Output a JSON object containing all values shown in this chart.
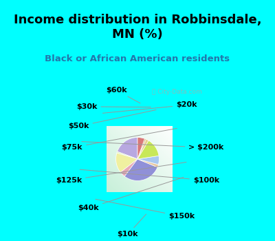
{
  "title": "Income distribution in Robbinsdale,\nMN (%)",
  "subtitle": "Black or African American residents",
  "watermark": "ⓘ City-Data.com",
  "bg_cyan": "#00FFFF",
  "bg_chart_colors": [
    "#ffffff",
    "#c8eed8"
  ],
  "labels": [
    "$20k",
    "> $200k",
    "$100k",
    "$150k",
    "$10k",
    "$40k",
    "$125k",
    "$75k",
    "$50k",
    "$30k",
    "$60k"
  ],
  "sizes": [
    18,
    1,
    14,
    4,
    27,
    2,
    6,
    13,
    2,
    1,
    5
  ],
  "colors": [
    "#b8a8e0",
    "#d8f0c0",
    "#f0f0a0",
    "#e8a8b8",
    "#9090d8",
    "#e8c8a0",
    "#a8c8f0",
    "#c8e858",
    "#e8d090",
    "#d8b878",
    "#d87878"
  ],
  "title_fontsize": 13,
  "subtitle_fontsize": 9.5,
  "label_fontsize": 8,
  "figsize": [
    4.0,
    3.5
  ],
  "dpi": 100
}
